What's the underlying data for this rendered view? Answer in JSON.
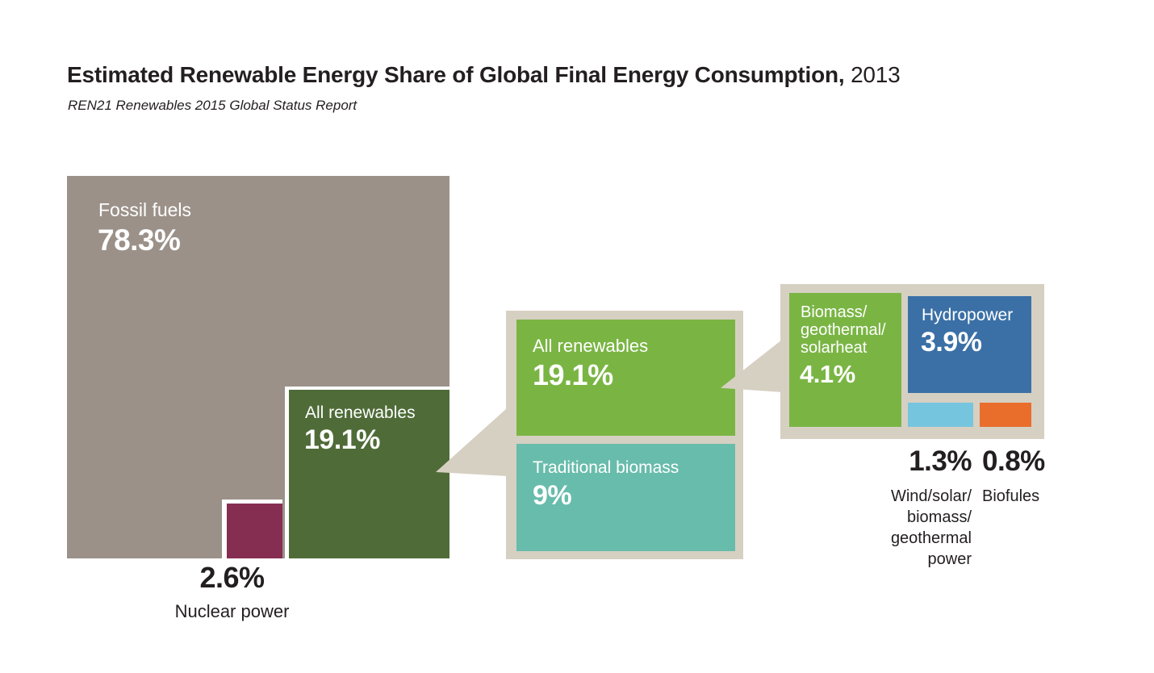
{
  "header": {
    "title_main": "Estimated Renewable Energy Share of Global Final Energy Consumption,",
    "title_year": " 2013",
    "subtitle": "REN21 Renewables 2015 Global Status Report"
  },
  "colors": {
    "background": "#ffffff",
    "text": "#231f20",
    "fossil_gray": "#9b9189",
    "nuclear_maroon": "#862d52",
    "all_renewables_dark_green": "#4f6c38",
    "all_renewables_green": "#7ab544",
    "traditional_biomass_teal": "#68bcab",
    "hydropower_blue": "#3b70a6",
    "wind_light_blue": "#76c5de",
    "biofuels_orange": "#e96d2b",
    "panel_beige": "#d6d0c3",
    "label_white": "#ffffff"
  },
  "blocks": {
    "fossil": {
      "label": "Fossil fuels",
      "value": "78.3%"
    },
    "nuclear": {
      "value": "2.6%",
      "label": "Nuclear power"
    },
    "all_renewables_main": {
      "label": "All renewables",
      "value": "19.1%"
    },
    "panel1": {
      "all_renewables": {
        "label": "All renewables",
        "value": "19.1%"
      },
      "traditional_biomass": {
        "label": "Traditional biomass",
        "value": "9%"
      }
    },
    "panel2": {
      "biomass_geothermal_solarheat": {
        "label_lines": [
          "Biomass/",
          "geothermal/",
          "solarheat"
        ],
        "value": "4.1%"
      },
      "hydropower": {
        "label": "Hydropower",
        "value": "3.9%"
      },
      "wind_solar_biomass_geothermal_power": {
        "value": "1.3%",
        "label_lines": [
          "Wind/solar/",
          "biomass/",
          "geothermal",
          "power"
        ]
      },
      "biofuels": {
        "value": "0.8%",
        "label": "Biofules"
      }
    }
  },
  "chart_data": {
    "type": "bar",
    "subtype": "proportional-area-blocks",
    "title": "Estimated Renewable Energy Share of Global Final Energy Consumption, 2013",
    "source": "REN21 Renewables 2015 Global Status Report",
    "unit": "%",
    "levels": [
      {
        "name": "global_final_energy_consumption",
        "categories": [
          "Fossil fuels",
          "Nuclear power",
          "All renewables"
        ],
        "values": [
          78.3,
          2.6,
          19.1
        ]
      },
      {
        "name": "all_renewables_split",
        "categories": [
          "All renewables",
          "Traditional biomass"
        ],
        "values": [
          19.1,
          9
        ]
      },
      {
        "name": "modern_renewables_detail",
        "categories": [
          "Biomass/geothermal/solarheat",
          "Hydropower",
          "Wind/solar/biomass/geothermal power",
          "Biofules"
        ],
        "values": [
          4.1,
          3.9,
          1.3,
          0.8
        ]
      }
    ],
    "legend_position": "none",
    "grid": false
  }
}
